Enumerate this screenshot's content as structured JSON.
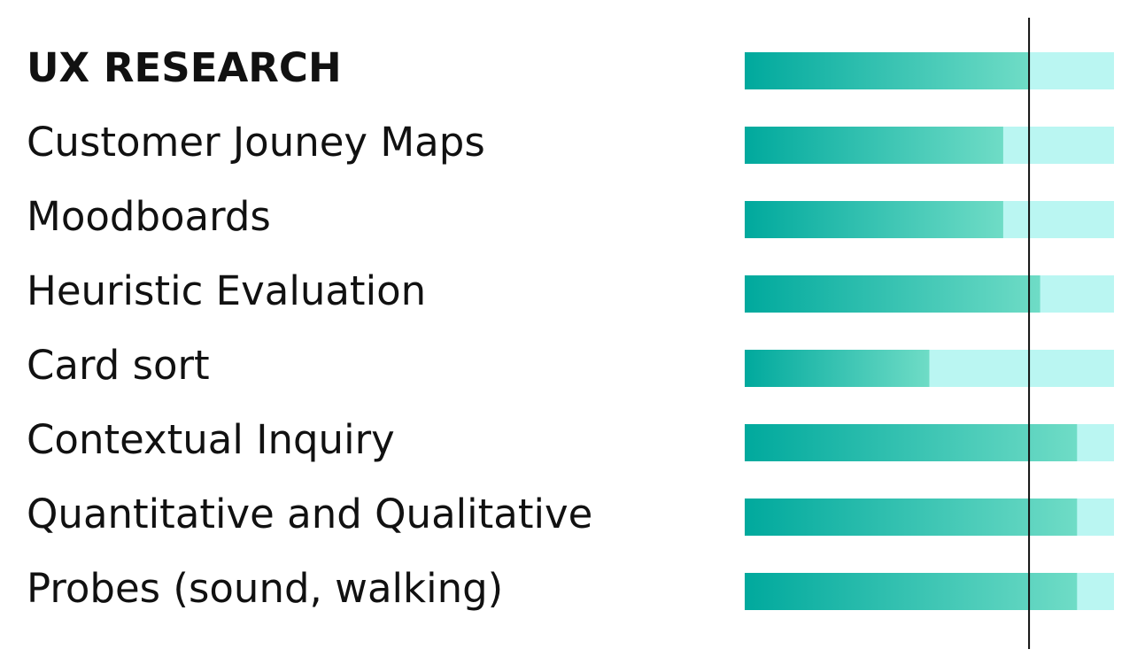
{
  "chart_data": {
    "type": "bar",
    "orientation": "horizontal",
    "title": "UX RESEARCH",
    "title_value": 77,
    "categories": [
      "Customer Jouney Maps",
      "Moodboards",
      "Heuristic Evaluation",
      "Card sort",
      "Contextual Inquiry",
      "Quantitative and Qualitative",
      "Probes (sound, walking)"
    ],
    "values": [
      70,
      70,
      80,
      50,
      90,
      90,
      90
    ],
    "xlim": [
      0,
      100
    ],
    "reference_line": 77,
    "color_start": "#00a99d",
    "color_end": "#6fdcc6",
    "track_color": "#baf6f2",
    "line_color": "#111111"
  }
}
